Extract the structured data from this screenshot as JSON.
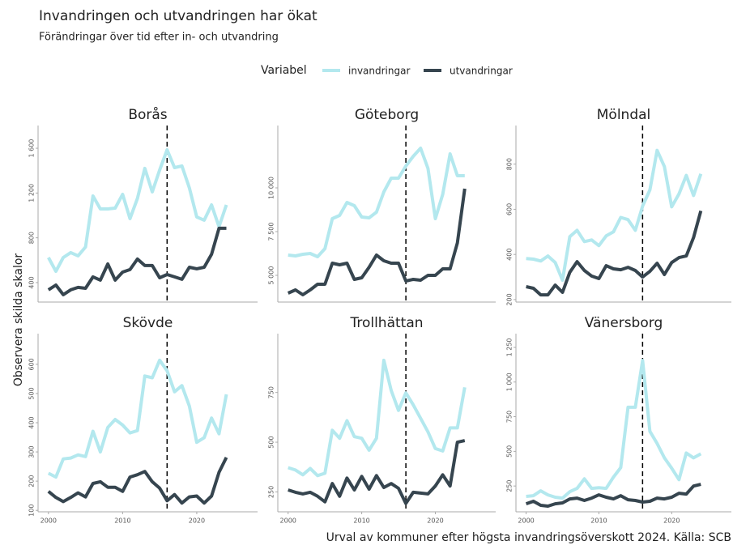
{
  "title": "Invandringen och utvandringen har ökat",
  "subtitle": "Förändringar över tid efter in- och utvandring",
  "y_axis_label": "Observera skilda skalor",
  "caption": "Urval av kommuner efter högsta invandringsöverskott 2024. Källa: SCB",
  "legend": {
    "title": "Variabel",
    "series": [
      {
        "name": "invandringar",
        "color": "#b3e8ee"
      },
      {
        "name": "utvandringar",
        "color": "#36454f"
      }
    ]
  },
  "shared": {
    "x": [
      2000,
      2001,
      2002,
      2003,
      2004,
      2005,
      2006,
      2007,
      2008,
      2009,
      2010,
      2011,
      2012,
      2013,
      2014,
      2015,
      2016,
      2017,
      2018,
      2019,
      2020,
      2021,
      2022,
      2023,
      2024
    ],
    "xlim": [
      1998.6,
      2028.2
    ],
    "xticks": [
      2000,
      2010,
      2020
    ],
    "vline": 2016
  },
  "chart_data": [
    {
      "type": "line",
      "title": "Borås",
      "ylim": [
        226,
        1803
      ],
      "yticks": [
        {
          "value": 400,
          "label": "400"
        },
        {
          "value": 800,
          "label": "800"
        },
        {
          "value": 1200,
          "label": "1 200"
        },
        {
          "value": 1600,
          "label": "1 600"
        }
      ],
      "series": [
        {
          "values": [
            624,
            501,
            624,
            668,
            639,
            718,
            1174,
            1058,
            1058,
            1065,
            1188,
            971,
            1152,
            1420,
            1210,
            1405,
            1586,
            1427,
            1442,
            1246,
            986,
            957,
            1094,
            899,
            1094
          ]
        },
        {
          "values": [
            335,
            378,
            292,
            335,
            357,
            349,
            451,
            422,
            566,
            422,
            494,
            516,
            610,
            552,
            552,
            443,
            472,
            451,
            429,
            537,
            523,
            537,
            653,
            885,
            885
          ]
        }
      ]
    },
    {
      "type": "line",
      "title": "Göteborg",
      "ylim": [
        3472,
        13565
      ],
      "yticks": [
        {
          "value": 5000,
          "label": "5 000"
        },
        {
          "value": 7500,
          "label": "7 500"
        },
        {
          "value": 10000,
          "label": "10 000"
        }
      ],
      "series": [
        {
          "values": [
            6157,
            6111,
            6204,
            6250,
            6065,
            6528,
            8241,
            8426,
            9167,
            8981,
            8333,
            8287,
            8611,
            9769,
            10556,
            10556,
            11250,
            11806,
            12269,
            11111,
            8241,
            9630,
            11944,
            10694,
            10694
          ]
        },
        {
          "values": [
            3981,
            4167,
            3889,
            4167,
            4491,
            4491,
            5694,
            5602,
            5694,
            4769,
            4861,
            5463,
            6157,
            5833,
            5694,
            5694,
            4676,
            4769,
            4722,
            5000,
            5000,
            5370,
            5370,
            6852,
            9954
          ]
        }
      ]
    },
    {
      "type": "line",
      "title": "Mölndal",
      "ylim": [
        189,
        971
      ],
      "yticks": [
        200,
        400,
        600,
        800
      ],
      "series": [
        {
          "values": [
            382,
            379,
            371,
            393,
            364,
            286,
            479,
            507,
            457,
            464,
            439,
            482,
            500,
            564,
            554,
            507,
            614,
            686,
            861,
            789,
            611,
            668,
            750,
            661,
            757
          ]
        },
        {
          "values": [
            257,
            250,
            221,
            221,
            264,
            232,
            321,
            368,
            329,
            304,
            293,
            350,
            336,
            332,
            343,
            329,
            300,
            325,
            361,
            311,
            364,
            386,
            393,
            475,
            593
          ]
        }
      ]
    },
    {
      "type": "line",
      "title": "Skövde",
      "ylim": [
        95,
        705
      ],
      "yticks": [
        100,
        200,
        300,
        400,
        500,
        600
      ],
      "series": [
        {
          "values": [
            227,
            214,
            276,
            279,
            290,
            284,
            371,
            300,
            384,
            411,
            392,
            365,
            373,
            560,
            554,
            614,
            578,
            506,
            527,
            457,
            333,
            349,
            416,
            362,
            497
          ]
        },
        {
          "values": [
            165,
            144,
            130,
            144,
            160,
            146,
            192,
            198,
            179,
            179,
            165,
            214,
            222,
            233,
            198,
            176,
            133,
            154,
            125,
            146,
            149,
            125,
            149,
            230,
            281
          ]
        }
      ]
    },
    {
      "type": "line",
      "title": "Trollhättan",
      "ylim": [
        150,
        1046
      ],
      "yticks": [
        250,
        500,
        750
      ],
      "series": [
        {
          "values": [
            372,
            360,
            336,
            368,
            332,
            344,
            560,
            520,
            608,
            528,
            520,
            460,
            520,
            912,
            760,
            660,
            748,
            688,
            620,
            552,
            468,
            456,
            572,
            572,
            776
          ]
        },
        {
          "values": [
            260,
            248,
            240,
            248,
            228,
            200,
            292,
            228,
            320,
            260,
            328,
            264,
            332,
            272,
            292,
            268,
            192,
            248,
            244,
            240,
            280,
            336,
            280,
            500,
            508
          ]
        }
      ]
    },
    {
      "type": "line",
      "title": "Vänersborg",
      "ylim": [
        64,
        1349
      ],
      "yticks": [
        250,
        500,
        750,
        {
          "value": 1000,
          "label": "1 000"
        },
        {
          "value": 1250,
          "label": "1 250"
        }
      ],
      "series": [
        {
          "values": [
            175,
            180,
            215,
            186,
            169,
            163,
            209,
            233,
            302,
            233,
            238,
            233,
            314,
            383,
            818,
            818,
            1155,
            644,
            557,
            453,
            378,
            296,
            488,
            453,
            482
          ]
        },
        {
          "values": [
            122,
            140,
            111,
            105,
            122,
            128,
            157,
            163,
            146,
            163,
            186,
            169,
            157,
            180,
            151,
            146,
            134,
            140,
            163,
            157,
            169,
            198,
            192,
            250,
            262
          ]
        }
      ]
    }
  ]
}
